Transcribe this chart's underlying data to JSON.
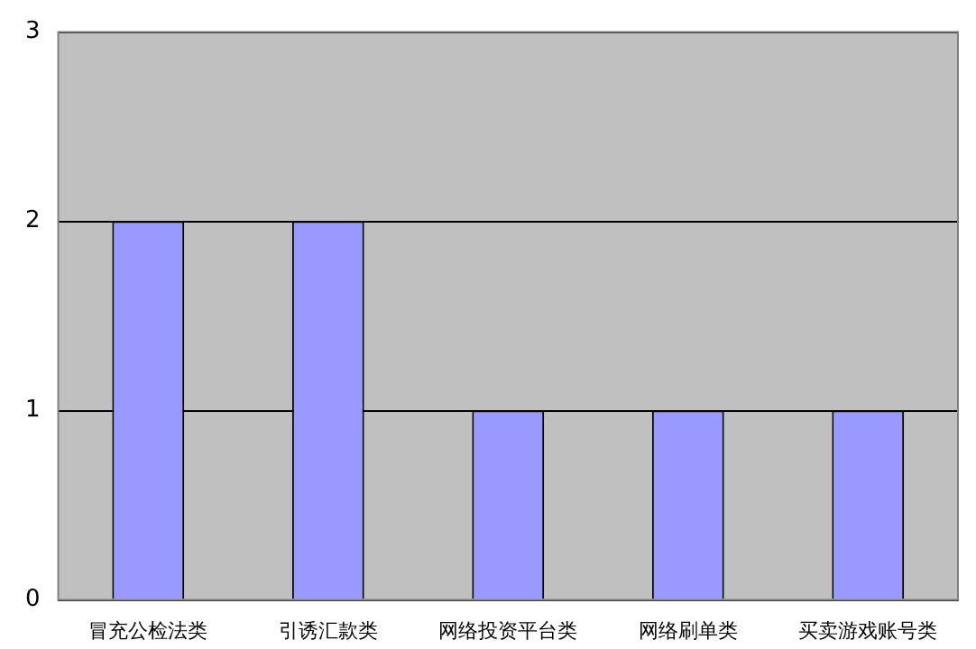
{
  "chart_data": {
    "type": "bar",
    "categories": [
      "冒充公检法类",
      "引诱汇款类",
      "网络投资平台类",
      "网络刷单类",
      "买卖游戏账号类"
    ],
    "values": [
      2,
      2,
      1,
      1,
      1
    ],
    "color": "#9999ff",
    "ylim": [
      0,
      3
    ],
    "yticks": [
      0,
      1,
      2,
      3
    ],
    "grid": "y",
    "legend": false
  }
}
